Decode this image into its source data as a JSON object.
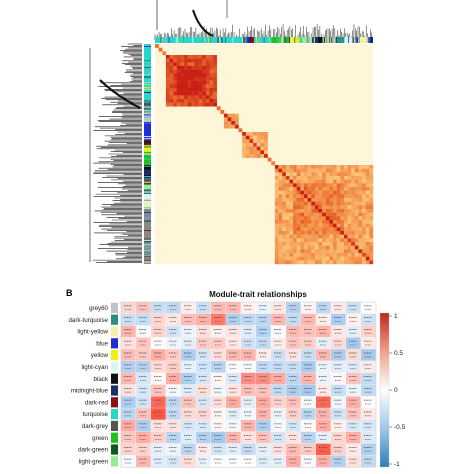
{
  "panel_b": {
    "label": "B",
    "title": "Module-trait relationships",
    "modules": [
      {
        "name": "grey60",
        "color": "#c2c2c2"
      },
      {
        "name": "dark-turquoise",
        "color": "#2b8b87"
      },
      {
        "name": "light-yellow",
        "color": "#f4f0a6"
      },
      {
        "name": "blue",
        "color": "#1a2fd6"
      },
      {
        "name": "yellow",
        "color": "#f4ec1a"
      },
      {
        "name": "light-cyan",
        "color": "#d4f6f6"
      },
      {
        "name": "black",
        "color": "#111111"
      },
      {
        "name": "midnight-blue",
        "color": "#1c2c6c"
      },
      {
        "name": "dark-red",
        "color": "#8b1010"
      },
      {
        "name": "turquoise",
        "color": "#2ad6c8"
      },
      {
        "name": "dark-grey",
        "color": "#555555"
      },
      {
        "name": "green",
        "color": "#20c020"
      },
      {
        "name": "dark-green",
        "color": "#0f5a19"
      },
      {
        "name": "light-green",
        "color": "#94ec94"
      }
    ],
    "legend_ticks": [
      "1",
      "0.5",
      "0",
      "-0.5",
      "-1"
    ],
    "scale_colors": {
      "high": "#d7301f",
      "mid": "#ffffff",
      "low": "#2c7fb8"
    }
  },
  "panel_a": {
    "side_color_bar": [
      "#2ad6c8",
      "#2ad6c8",
      "#2ad6c8",
      "#8b1010",
      "#1a2fd6",
      "#f4ec1a",
      "#111111",
      "#20c020",
      "#94ec94",
      "#555555",
      "#c2c2c2",
      "#2b8b87",
      "#1c2c6c",
      "#d4f6f6",
      "#f4f0a6"
    ],
    "heat_colors": {
      "low": "#fffbe6",
      "mid": "#fdb863",
      "high": "#d7301f"
    }
  }
}
